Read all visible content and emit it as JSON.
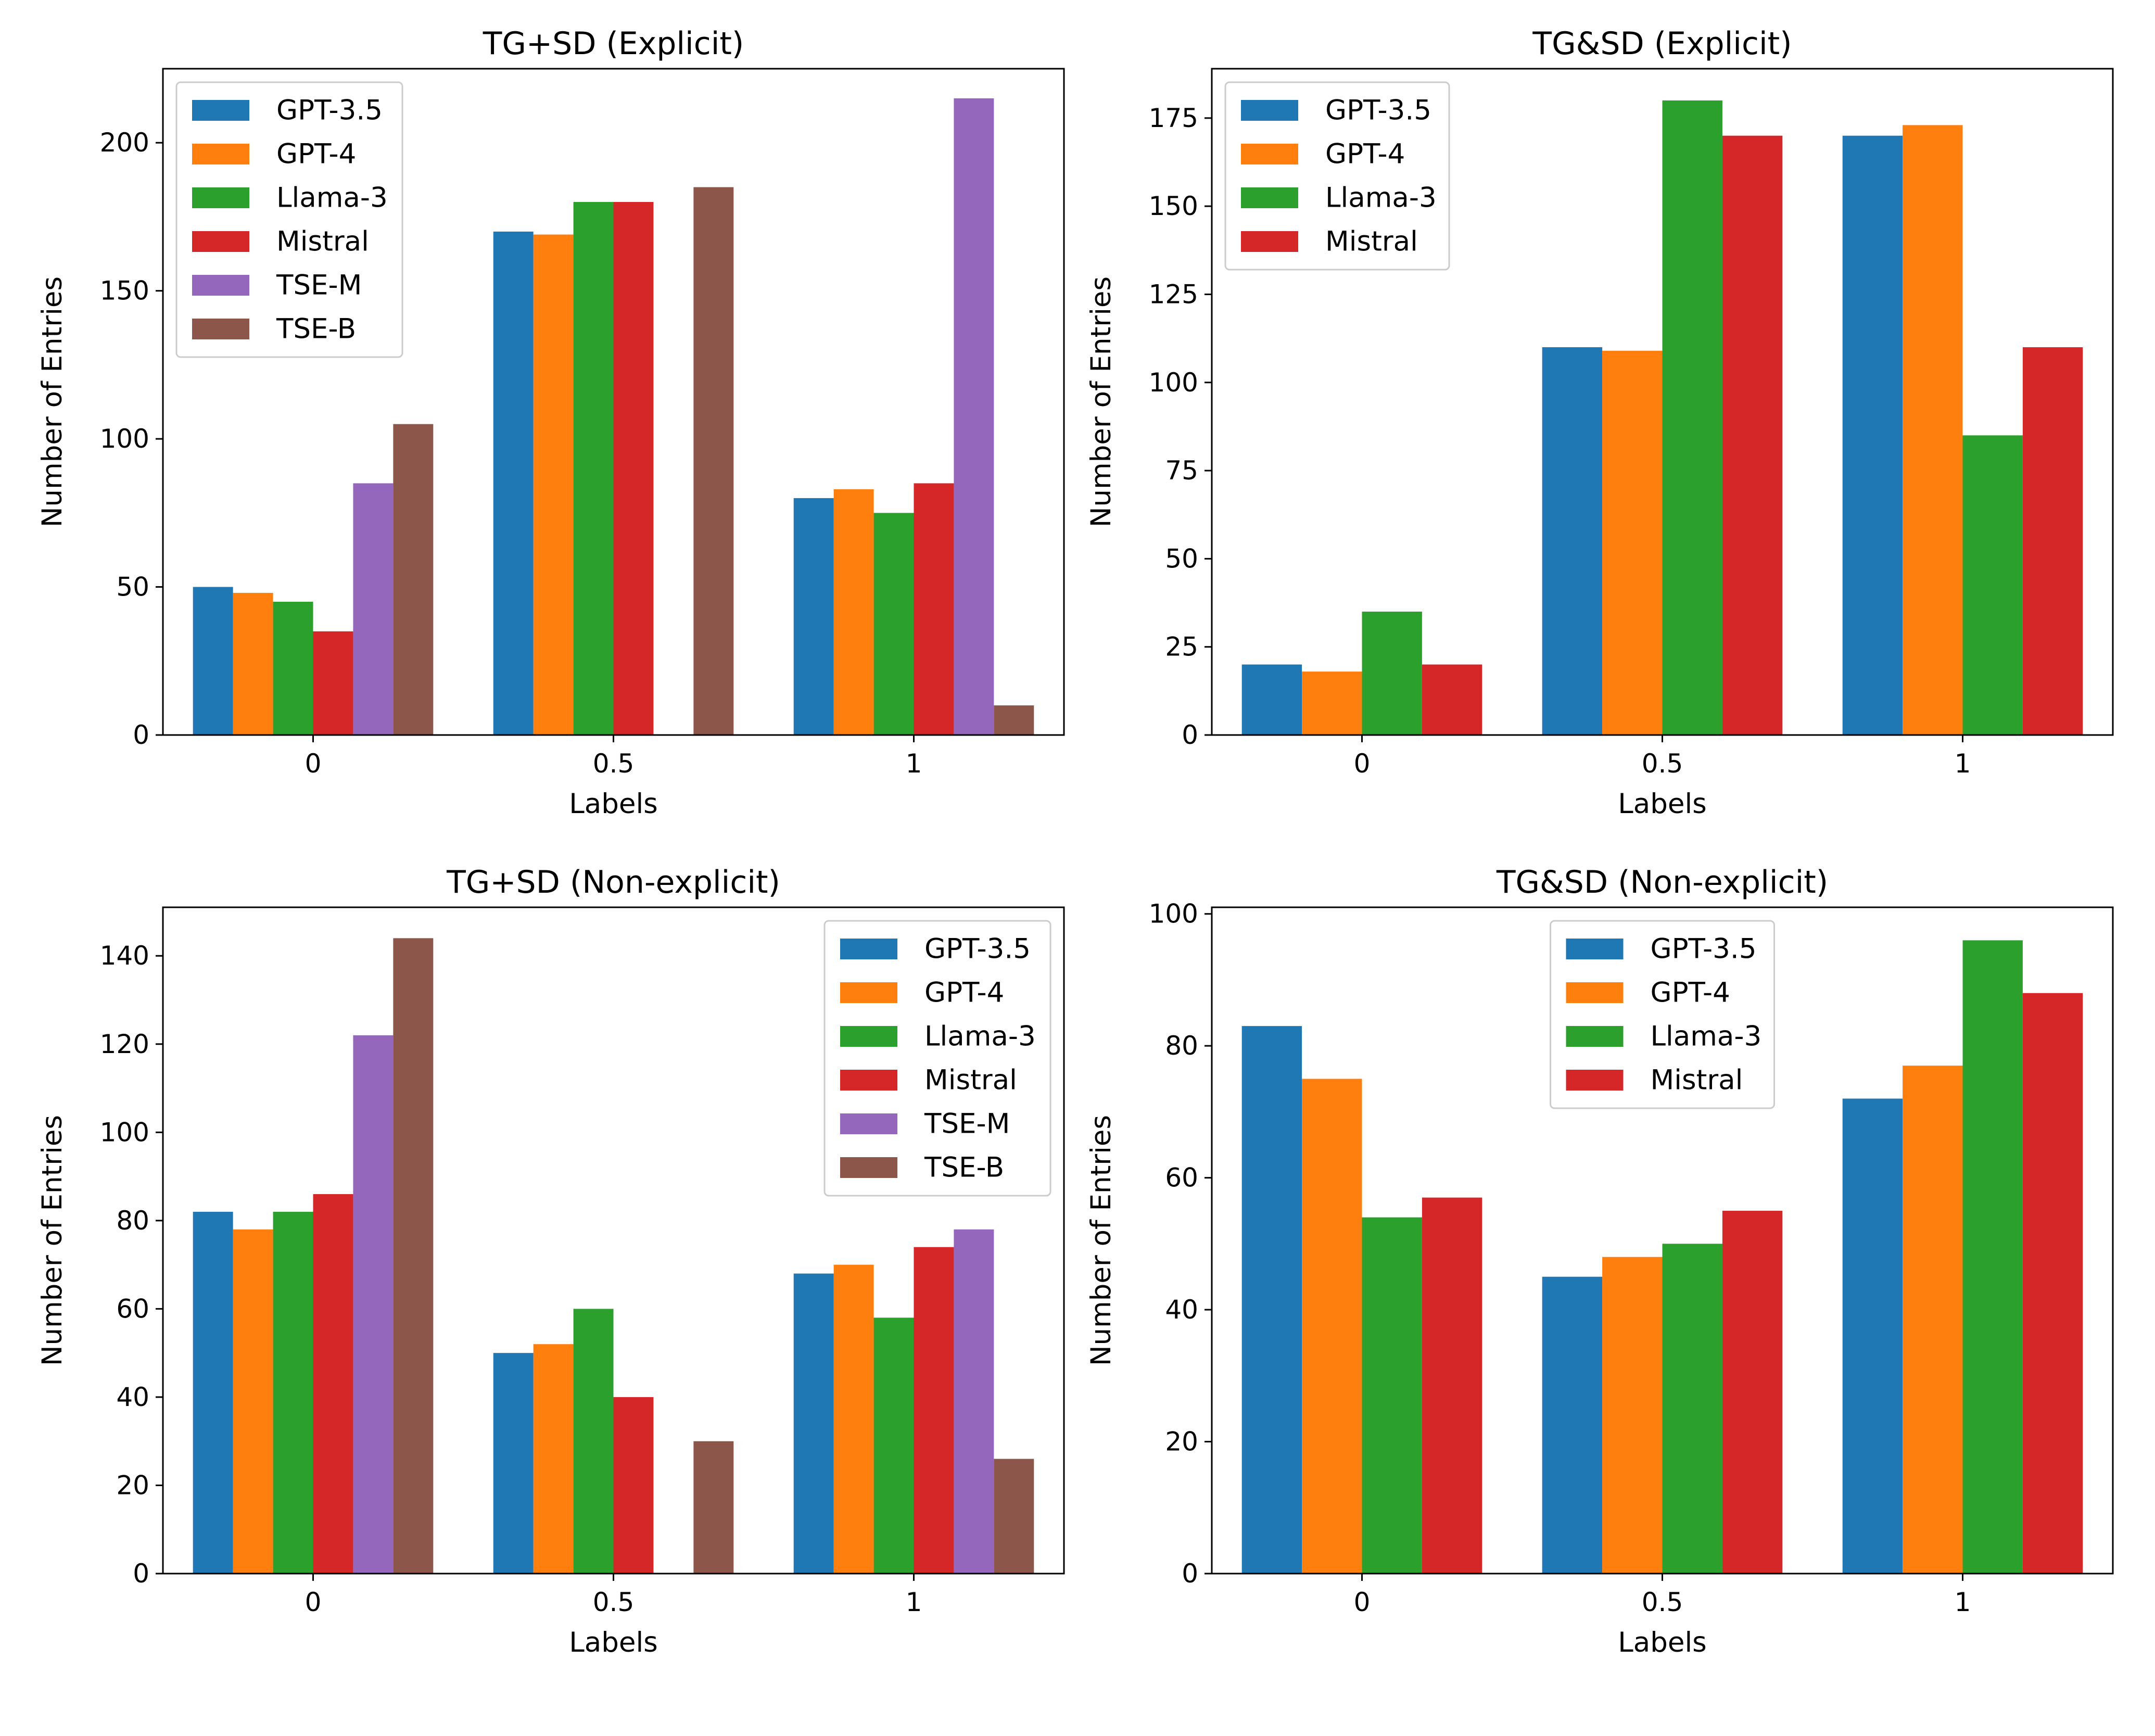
{
  "chart_data": [
    {
      "type": "bar",
      "title": "TG+SD (Explicit)",
      "xlabel": "Labels",
      "ylabel": "Number of Entries",
      "categories": [
        "0",
        "0.5",
        "1"
      ],
      "ylim": [
        0,
        225
      ],
      "yticks": [
        0,
        50,
        100,
        150,
        200
      ],
      "legend_position": "upper-left",
      "series": [
        {
          "name": "GPT-3.5",
          "color": "#1f77b4",
          "values": [
            50,
            170,
            80
          ]
        },
        {
          "name": "GPT-4",
          "color": "#ff7f0e",
          "values": [
            48,
            169,
            83
          ]
        },
        {
          "name": "Llama-3",
          "color": "#2ca02c",
          "values": [
            45,
            180,
            75
          ]
        },
        {
          "name": "Mistral",
          "color": "#d62728",
          "values": [
            35,
            180,
            85
          ]
        },
        {
          "name": "TSE-M",
          "color": "#9467bd",
          "values": [
            85,
            0,
            215
          ]
        },
        {
          "name": "TSE-B",
          "color": "#8c564b",
          "values": [
            105,
            185,
            10
          ]
        }
      ]
    },
    {
      "type": "bar",
      "title": "TG&SD (Explicit)",
      "xlabel": "Labels",
      "ylabel": "Number of Entries",
      "categories": [
        "0",
        "0.5",
        "1"
      ],
      "ylim": [
        0,
        189
      ],
      "yticks": [
        0,
        25,
        50,
        75,
        100,
        125,
        150,
        175
      ],
      "legend_position": "upper-left",
      "series": [
        {
          "name": "GPT-3.5",
          "color": "#1f77b4",
          "values": [
            20,
            110,
            170
          ]
        },
        {
          "name": "GPT-4",
          "color": "#ff7f0e",
          "values": [
            18,
            109,
            173
          ]
        },
        {
          "name": "Llama-3",
          "color": "#2ca02c",
          "values": [
            35,
            180,
            85
          ]
        },
        {
          "name": "Mistral",
          "color": "#d62728",
          "values": [
            20,
            170,
            110
          ]
        }
      ]
    },
    {
      "type": "bar",
      "title": "TG+SD (Non-explicit)",
      "xlabel": "Labels",
      "ylabel": "Number of Entries",
      "categories": [
        "0",
        "0.5",
        "1"
      ],
      "ylim": [
        0,
        151
      ],
      "yticks": [
        0,
        20,
        40,
        60,
        80,
        100,
        120,
        140
      ],
      "legend_position": "upper-right",
      "series": [
        {
          "name": "GPT-3.5",
          "color": "#1f77b4",
          "values": [
            82,
            50,
            68
          ]
        },
        {
          "name": "GPT-4",
          "color": "#ff7f0e",
          "values": [
            78,
            52,
            70
          ]
        },
        {
          "name": "Llama-3",
          "color": "#2ca02c",
          "values": [
            82,
            60,
            58
          ]
        },
        {
          "name": "Mistral",
          "color": "#d62728",
          "values": [
            86,
            40,
            74
          ]
        },
        {
          "name": "TSE-M",
          "color": "#9467bd",
          "values": [
            122,
            0,
            78
          ]
        },
        {
          "name": "TSE-B",
          "color": "#8c564b",
          "values": [
            144,
            30,
            26
          ]
        }
      ]
    },
    {
      "type": "bar",
      "title": "TG&SD (Non-explicit)",
      "xlabel": "Labels",
      "ylabel": "Number of Entries",
      "categories": [
        "0",
        "0.5",
        "1"
      ],
      "ylim": [
        0,
        101
      ],
      "yticks": [
        0,
        20,
        40,
        60,
        80,
        100
      ],
      "legend_position": "upper-center",
      "series": [
        {
          "name": "GPT-3.5",
          "color": "#1f77b4",
          "values": [
            83,
            45,
            72
          ]
        },
        {
          "name": "GPT-4",
          "color": "#ff7f0e",
          "values": [
            75,
            48,
            77
          ]
        },
        {
          "name": "Llama-3",
          "color": "#2ca02c",
          "values": [
            54,
            50,
            96
          ]
        },
        {
          "name": "Mistral",
          "color": "#d62728",
          "values": [
            57,
            55,
            88
          ]
        }
      ]
    }
  ]
}
